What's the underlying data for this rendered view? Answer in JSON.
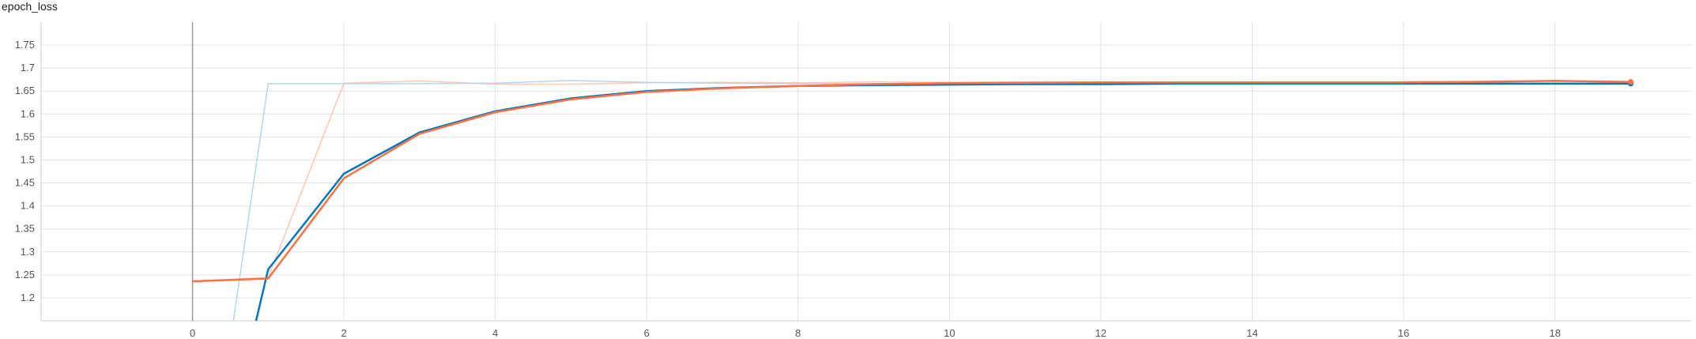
{
  "chart_data": {
    "type": "line",
    "title": "epoch_loss",
    "xlabel": "",
    "ylabel": "",
    "xlim": [
      -2,
      19.8
    ],
    "ylim": [
      1.15,
      1.8
    ],
    "x_ticks": [
      0,
      2,
      4,
      6,
      8,
      10,
      12,
      14,
      16,
      18
    ],
    "y_ticks": [
      1.2,
      1.25,
      1.3,
      1.35,
      1.4,
      1.45,
      1.5,
      1.55,
      1.6,
      1.65,
      1.7,
      1.75
    ],
    "grid": true,
    "series": [
      {
        "color": "#ff7043",
        "x": [
          0,
          1,
          2,
          3,
          4,
          5,
          6,
          7,
          8,
          9,
          10,
          11,
          12,
          13,
          14,
          15,
          16,
          17,
          18,
          19
        ],
        "values": [
          1.236,
          1.242,
          1.46,
          1.557,
          1.604,
          1.632,
          1.648,
          1.656,
          1.661,
          1.665,
          1.667,
          1.668,
          1.669,
          1.669,
          1.669,
          1.669,
          1.669,
          1.67,
          1.672,
          1.67
        ]
      },
      {
        "color": "#0077bb",
        "x": [
          0.84,
          1,
          2,
          3,
          4,
          5,
          6,
          7,
          8,
          9,
          10,
          11,
          12,
          13,
          14,
          15,
          16,
          17,
          18,
          19
        ],
        "values": [
          1.15,
          1.262,
          1.47,
          1.56,
          1.606,
          1.634,
          1.65,
          1.657,
          1.661,
          1.663,
          1.664,
          1.665,
          1.665,
          1.666,
          1.666,
          1.666,
          1.666,
          1.666,
          1.666,
          1.666
        ]
      },
      {
        "color": "#ffc7b3",
        "x": [
          0,
          1,
          2,
          3,
          4,
          5,
          6,
          7,
          8,
          9,
          10,
          11,
          12,
          13,
          14,
          15,
          16,
          17,
          18,
          19
        ],
        "values": [
          1.236,
          1.244,
          1.667,
          1.672,
          1.665,
          1.665,
          1.668,
          1.669,
          1.668,
          1.67,
          1.669,
          1.67,
          1.67,
          1.669,
          1.67,
          1.669,
          1.67,
          1.671,
          1.673,
          1.67
        ]
      },
      {
        "color": "#b5d5e8",
        "x": [
          0.54,
          1,
          2,
          3,
          4,
          5,
          6,
          7,
          8,
          9,
          10,
          11,
          12,
          13,
          14,
          15,
          16,
          17,
          18,
          19
        ],
        "values": [
          1.15,
          1.666,
          1.666,
          1.666,
          1.667,
          1.673,
          1.669,
          1.667,
          1.666,
          1.666,
          1.666,
          1.666,
          1.666,
          1.666,
          1.666,
          1.666,
          1.666,
          1.666,
          1.666,
          1.666
        ]
      }
    ]
  }
}
